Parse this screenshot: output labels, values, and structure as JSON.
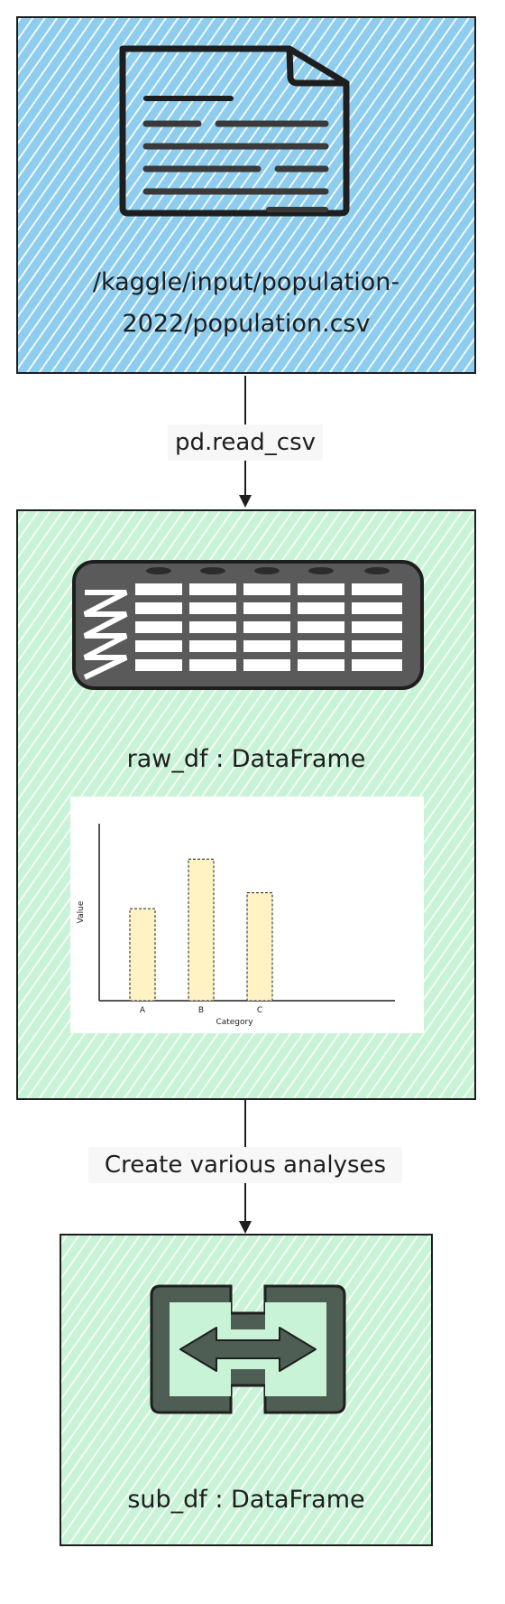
{
  "nodes": {
    "source": {
      "label_line1": "/kaggle/input/population-",
      "label_line2": "2022/population.csv",
      "icon": "document-icon",
      "fill": "#8fcdee"
    },
    "raw_df": {
      "label": "raw_df : DataFrame",
      "icon": "table-icon",
      "fill": "#c9f3d6"
    },
    "sub_df": {
      "label": "sub_df : DataFrame",
      "icon": "transform-arrows-icon",
      "fill": "#c9f3d6"
    }
  },
  "edges": [
    {
      "from": "source",
      "to": "raw_df",
      "label": "pd.read_csv"
    },
    {
      "from": "raw_df",
      "to": "sub_df",
      "label": "Create various analyses"
    }
  ],
  "chart_data": {
    "type": "bar",
    "categories": [
      "A",
      "B",
      "C"
    ],
    "values": [
      52,
      80,
      61
    ],
    "xlabel": "Category",
    "ylabel": "Value",
    "ylim": [
      0,
      100
    ],
    "bar_color": "#fff3c4"
  }
}
